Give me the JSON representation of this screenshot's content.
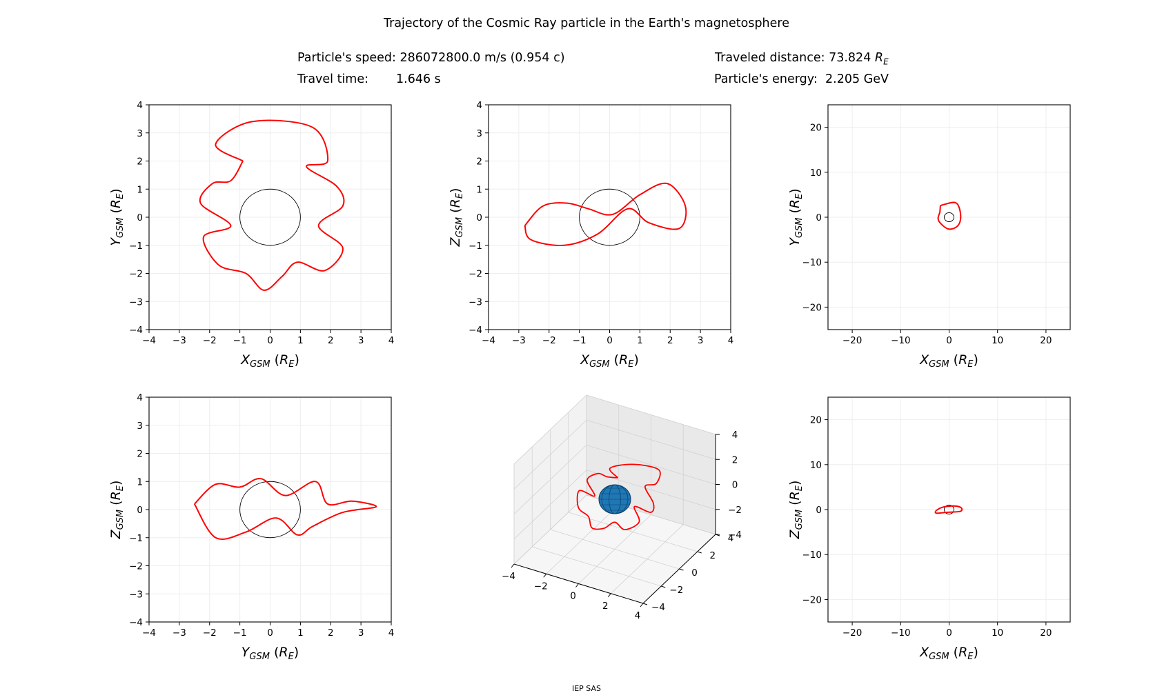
{
  "title": "Trajectory of the Cosmic Ray particle in the Earth's magnetosphere",
  "info": {
    "speed_label": "Particle's speed:",
    "speed_value": "286072800.0 m/s (0.954 c)",
    "time_label": "Travel time:",
    "time_value": "1.646 s",
    "distance_label": "Traveled distance:",
    "distance_value": "73.824",
    "distance_unit": "R",
    "distance_unit_sub": "E",
    "energy_label": "Particle's energy:",
    "energy_value": "2.205 GeV"
  },
  "footer": "IEP SAS",
  "colors": {
    "trajectory": "#ff0000",
    "earth": "#1f77b4",
    "grid": "#eeeeee"
  },
  "chart_data": [
    {
      "type": "line",
      "panel": "top-left",
      "xlabel": {
        "main": "X",
        "sub": "GSM",
        "unit": "R",
        "unit_sub": "E"
      },
      "ylabel": {
        "main": "Y",
        "sub": "GSM",
        "unit": "R",
        "unit_sub": "E"
      },
      "xlim": [
        -4,
        4
      ],
      "ylim": [
        -4,
        4
      ],
      "xticks": [
        -4,
        -3,
        -2,
        -1,
        0,
        1,
        2,
        3,
        4
      ],
      "yticks": [
        -4,
        -3,
        -2,
        -1,
        0,
        1,
        2,
        3,
        4
      ],
      "grid": true,
      "earth_circle_radius": 1,
      "series": [
        {
          "points": [
            [
              -0.9,
              2.0
            ],
            [
              -1.8,
              2.6
            ],
            [
              -0.6,
              3.4
            ],
            [
              1.4,
              3.2
            ],
            [
              1.9,
              2.0
            ],
            [
              1.2,
              1.8
            ],
            [
              2.2,
              1.1
            ],
            [
              2.4,
              0.4
            ],
            [
              1.6,
              -0.3
            ],
            [
              2.4,
              -1.1
            ],
            [
              1.8,
              -1.9
            ],
            [
              0.9,
              -1.6
            ],
            [
              0.4,
              -2.1
            ],
            [
              -0.2,
              -2.6
            ],
            [
              -0.8,
              -2.0
            ],
            [
              -1.7,
              -1.7
            ],
            [
              -2.2,
              -0.7
            ],
            [
              -1.3,
              -0.3
            ],
            [
              -2.3,
              0.5
            ],
            [
              -1.9,
              1.2
            ],
            [
              -1.3,
              1.3
            ],
            [
              -0.9,
              2.0
            ]
          ]
        }
      ]
    },
    {
      "type": "line",
      "panel": "top-middle",
      "xlabel": {
        "main": "X",
        "sub": "GSM",
        "unit": "R",
        "unit_sub": "E"
      },
      "ylabel": {
        "main": "Z",
        "sub": "GSM",
        "unit": "R",
        "unit_sub": "E"
      },
      "xlim": [
        -4,
        4
      ],
      "ylim": [
        -4,
        4
      ],
      "xticks": [
        -4,
        -3,
        -2,
        -1,
        0,
        1,
        2,
        3,
        4
      ],
      "yticks": [
        -4,
        -3,
        -2,
        -1,
        0,
        1,
        2,
        3,
        4
      ],
      "grid": true,
      "earth_circle_radius": 1,
      "series": [
        {
          "points": [
            [
              -2.8,
              -0.3
            ],
            [
              -2.2,
              0.4
            ],
            [
              -1.4,
              0.5
            ],
            [
              -0.7,
              0.3
            ],
            [
              0.1,
              0.1
            ],
            [
              1.0,
              0.8
            ],
            [
              1.9,
              1.2
            ],
            [
              2.5,
              0.4
            ],
            [
              2.3,
              -0.4
            ],
            [
              1.3,
              -0.2
            ],
            [
              0.6,
              0.3
            ],
            [
              -0.4,
              -0.6
            ],
            [
              -1.5,
              -1.0
            ],
            [
              -2.6,
              -0.8
            ],
            [
              -2.8,
              -0.3
            ]
          ]
        }
      ]
    },
    {
      "type": "line",
      "panel": "top-right",
      "xlabel": {
        "main": "X",
        "sub": "GSM",
        "unit": "R",
        "unit_sub": "E"
      },
      "ylabel": {
        "main": "Y",
        "sub": "GSM",
        "unit": "R",
        "unit_sub": "E"
      },
      "xlim": [
        -25,
        25
      ],
      "ylim": [
        -25,
        25
      ],
      "xticks": [
        -20,
        -10,
        0,
        10,
        20
      ],
      "yticks": [
        -20,
        -10,
        0,
        10,
        20
      ],
      "grid": true,
      "earth_circle_radius": 1,
      "series": [
        {
          "points": [
            [
              -1.8,
              2.6
            ],
            [
              1.4,
              3.2
            ],
            [
              2.4,
              0.4
            ],
            [
              1.8,
              -1.9
            ],
            [
              -0.2,
              -2.6
            ],
            [
              -2.2,
              -0.7
            ],
            [
              -1.9,
              1.2
            ],
            [
              -1.8,
              2.6
            ]
          ]
        }
      ]
    },
    {
      "type": "line",
      "panel": "bottom-left",
      "xlabel": {
        "main": "Y",
        "sub": "GSM",
        "unit": "R",
        "unit_sub": "E"
      },
      "ylabel": {
        "main": "Z",
        "sub": "GSM",
        "unit": "R",
        "unit_sub": "E"
      },
      "xlim": [
        -4,
        4
      ],
      "ylim": [
        -4,
        4
      ],
      "xticks": [
        -4,
        -3,
        -2,
        -1,
        0,
        1,
        2,
        3,
        4
      ],
      "yticks": [
        -4,
        -3,
        -2,
        -1,
        0,
        1,
        2,
        3,
        4
      ],
      "grid": true,
      "earth_circle_radius": 1,
      "series": [
        {
          "points": [
            [
              -2.5,
              0.2
            ],
            [
              -1.8,
              0.9
            ],
            [
              -1.0,
              0.8
            ],
            [
              -0.3,
              1.1
            ],
            [
              0.5,
              0.5
            ],
            [
              1.5,
              1.0
            ],
            [
              1.9,
              0.2
            ],
            [
              2.7,
              0.3
            ],
            [
              3.5,
              0.1
            ],
            [
              2.4,
              -0.1
            ],
            [
              1.4,
              -0.6
            ],
            [
              0.9,
              -0.9
            ],
            [
              0.2,
              -0.3
            ],
            [
              -0.8,
              -0.8
            ],
            [
              -1.8,
              -1.0
            ],
            [
              -2.5,
              0.2
            ]
          ]
        }
      ]
    },
    {
      "type": "line3d",
      "panel": "bottom-middle",
      "xlim": [
        -4,
        4
      ],
      "ylim": [
        -4,
        4
      ],
      "zlim": [
        -4,
        4
      ],
      "xticks": [
        -4,
        -2,
        0,
        2,
        4
      ],
      "yticks": [
        -4,
        -2,
        0,
        2,
        4
      ],
      "zticks": [
        -4,
        -2,
        0,
        2,
        4
      ],
      "grid": true
    },
    {
      "type": "line",
      "panel": "bottom-right",
      "xlabel": {
        "main": "X",
        "sub": "GSM",
        "unit": "R",
        "unit_sub": "E"
      },
      "ylabel": {
        "main": "Z",
        "sub": "GSM",
        "unit": "R",
        "unit_sub": "E"
      },
      "xlim": [
        -25,
        25
      ],
      "ylim": [
        -25,
        25
      ],
      "xticks": [
        -20,
        -10,
        0,
        10,
        20
      ],
      "yticks": [
        -20,
        -10,
        0,
        10,
        20
      ],
      "grid": true,
      "earth_circle_radius": 1,
      "series": [
        {
          "points": [
            [
              -2.8,
              -0.3
            ],
            [
              -1.4,
              0.5
            ],
            [
              1.0,
              0.8
            ],
            [
              2.5,
              0.4
            ],
            [
              2.3,
              -0.4
            ],
            [
              -0.4,
              -0.6
            ],
            [
              -2.6,
              -0.8
            ],
            [
              -2.8,
              -0.3
            ]
          ]
        }
      ]
    }
  ]
}
